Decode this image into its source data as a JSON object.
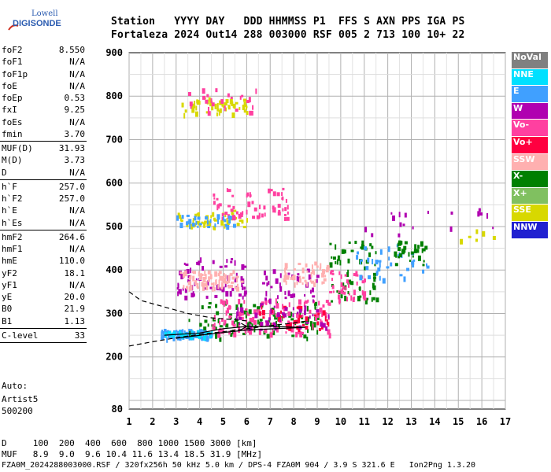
{
  "logo": {
    "brand": "Lowell",
    "name": "DIGISONDE"
  },
  "header": {
    "line1": "Station   YYYY DAY   DDD HHMMSS P1  FFS S AXN PPS IGA PS",
    "line2": "Fortaleza 2024 Out14 288 003000 RSF 005 2 713 100 10+ 22"
  },
  "params": {
    "group1": [
      {
        "name": "foF2",
        "value": "8.550"
      },
      {
        "name": "foF1",
        "value": "N/A"
      },
      {
        "name": "foF1p",
        "value": "N/A"
      },
      {
        "name": "foE",
        "value": "N/A"
      },
      {
        "name": "foEp",
        "value": "0.53"
      },
      {
        "name": "fxI",
        "value": "9.25"
      },
      {
        "name": "foEs",
        "value": "N/A"
      },
      {
        "name": "fmin",
        "value": "3.70"
      }
    ],
    "group2": [
      {
        "name": "MUF(D)",
        "value": "31.93"
      },
      {
        "name": "M(D)",
        "value": "3.73"
      },
      {
        "name": "D",
        "value": "N/A"
      }
    ],
    "group3": [
      {
        "name": "h`F",
        "value": "257.0"
      },
      {
        "name": "h`F2",
        "value": "257.0"
      },
      {
        "name": "h`E",
        "value": "N/A"
      },
      {
        "name": "h`Es",
        "value": "N/A"
      }
    ],
    "group4": [
      {
        "name": "hmF2",
        "value": "264.6"
      },
      {
        "name": "hmF1",
        "value": "N/A"
      },
      {
        "name": "hmE",
        "value": "110.0"
      },
      {
        "name": "yF2",
        "value": "18.1"
      },
      {
        "name": "yF1",
        "value": "N/A"
      },
      {
        "name": "yE",
        "value": "20.0"
      },
      {
        "name": "B0",
        "value": "21.9"
      },
      {
        "name": "B1",
        "value": "1.13"
      }
    ],
    "group5": [
      {
        "name": "C-level",
        "value": "33"
      }
    ]
  },
  "auto": {
    "label": "Auto:",
    "software": "Artist5",
    "version": "500200"
  },
  "footer": {
    "line1": "D     100  200  400  600  800 1000 1500 3000 [km]",
    "line2": "MUF   8.9  9.0  9.6 10.4 11.6 13.4 18.5 31.9 [MHz]",
    "line3": "FZA0M_2024288003000.RSF / 320fx256h 50 kHz 5.0 km / DPS-4 FZA0M 904 / 3.9 S 321.6 E   Ion2Png 1.3.20"
  },
  "legend": [
    {
      "label": "NoVal",
      "color": "#808080"
    },
    {
      "label": "NNE",
      "color": "#00e0ff"
    },
    {
      "label": "E",
      "color": "#40a0ff"
    },
    {
      "label": "W",
      "color": "#b000b0"
    },
    {
      "label": "Vo-",
      "color": "#ff40a0"
    },
    {
      "label": "Vo+",
      "color": "#ff0040"
    },
    {
      "label": "SSW",
      "color": "#ffb0b0"
    },
    {
      "label": "X-",
      "color": "#008000"
    },
    {
      "label": "X+",
      "color": "#80c060"
    },
    {
      "label": "SSE",
      "color": "#d8d800"
    },
    {
      "label": "NNW",
      "color": "#2020d0"
    }
  ],
  "chart_data": {
    "type": "scatter",
    "title": "",
    "xlabel": "",
    "ylabel": "",
    "xlim": [
      1,
      17
    ],
    "ylim": [
      80,
      900
    ],
    "xticks": [
      "1",
      "2",
      "3",
      "4",
      "5",
      "6",
      "7",
      "8",
      "9",
      "10",
      "11",
      "12",
      "13",
      "14",
      "15",
      "16",
      "17"
    ],
    "yticks": [
      "80",
      "200",
      "300",
      "400",
      "500",
      "600",
      "700",
      "800",
      "900"
    ],
    "grid": true,
    "curves": [
      {
        "name": "dashed-upper",
        "style": "dashed",
        "points": [
          [
            1,
            350
          ],
          [
            1.5,
            330
          ],
          [
            2.5,
            315
          ],
          [
            3.5,
            300
          ],
          [
            4.5,
            290
          ],
          [
            6,
            283
          ]
        ]
      },
      {
        "name": "dashed-lower",
        "style": "dashed",
        "points": [
          [
            1,
            225
          ],
          [
            2,
            235
          ],
          [
            3,
            244
          ],
          [
            4,
            252
          ],
          [
            5,
            258
          ],
          [
            6,
            265
          ],
          [
            7,
            272
          ],
          [
            8,
            278
          ],
          [
            8.6,
            283
          ]
        ]
      },
      {
        "name": "solid-profile",
        "style": "solid",
        "points": [
          [
            2.5,
            250
          ],
          [
            4,
            255
          ],
          [
            5,
            265
          ],
          [
            6,
            270
          ],
          [
            7,
            270
          ],
          [
            8.5,
            268
          ],
          [
            6,
            262
          ],
          [
            4.5,
            253
          ],
          [
            3,
            243
          ]
        ]
      }
    ],
    "clusters": [
      {
        "series": "E",
        "x": [
          2.3,
          4.5
        ],
        "y": [
          245,
          265
        ],
        "n": 90
      },
      {
        "series": "NNE",
        "x": [
          2.5,
          4.5
        ],
        "y": [
          248,
          262
        ],
        "n": 30
      },
      {
        "series": "X-",
        "x": [
          3.5,
          9.0
        ],
        "y": [
          245,
          330
        ],
        "n": 90
      },
      {
        "series": "Vo-",
        "x": [
          4.5,
          9.5
        ],
        "y": [
          255,
          335
        ],
        "n": 120
      },
      {
        "series": "Vo+",
        "x": [
          6.5,
          9.5
        ],
        "y": [
          265,
          320
        ],
        "n": 40
      },
      {
        "series": "W",
        "x": [
          5.5,
          9.5
        ],
        "y": [
          265,
          315
        ],
        "n": 40
      },
      {
        "series": "X-",
        "x": [
          9.5,
          11.5
        ],
        "y": [
          330,
          470
        ],
        "n": 60
      },
      {
        "series": "Vo-",
        "x": [
          9.5,
          11.0
        ],
        "y": [
          330,
          400
        ],
        "n": 40
      },
      {
        "series": "E",
        "x": [
          10.5,
          13.8
        ],
        "y": [
          380,
          460
        ],
        "n": 40
      },
      {
        "series": "X-",
        "x": [
          12.0,
          13.6
        ],
        "y": [
          410,
          470
        ],
        "n": 30
      },
      {
        "series": "W",
        "x": [
          3.0,
          6.0
        ],
        "y": [
          340,
          430
        ],
        "n": 70
      },
      {
        "series": "SSW",
        "x": [
          3.0,
          5.8
        ],
        "y": [
          360,
          400
        ],
        "n": 70
      },
      {
        "series": "W",
        "x": [
          6.5,
          9.0
        ],
        "y": [
          310,
          420
        ],
        "n": 40
      },
      {
        "series": "SSW",
        "x": [
          7.5,
          9.5
        ],
        "y": [
          370,
          420
        ],
        "n": 50
      },
      {
        "series": "SSE",
        "x": [
          3.0,
          6.0
        ],
        "y": [
          500,
          540
        ],
        "n": 50
      },
      {
        "series": "Vo-",
        "x": [
          4.5,
          7.8
        ],
        "y": [
          520,
          590
        ],
        "n": 60
      },
      {
        "series": "E",
        "x": [
          3.0,
          5.5
        ],
        "y": [
          500,
          530
        ],
        "n": 30
      },
      {
        "series": "SSE",
        "x": [
          3.2,
          6.0
        ],
        "y": [
          760,
          800
        ],
        "n": 50
      },
      {
        "series": "Vo-",
        "x": [
          3.5,
          7.0
        ],
        "y": [
          760,
          820
        ],
        "n": 25
      },
      {
        "series": "W",
        "x": [
          11.0,
          16.5
        ],
        "y": [
          480,
          545
        ],
        "n": 18
      },
      {
        "series": "SSE",
        "x": [
          14.5,
          16.5
        ],
        "y": [
          470,
          500
        ],
        "n": 6
      }
    ]
  }
}
